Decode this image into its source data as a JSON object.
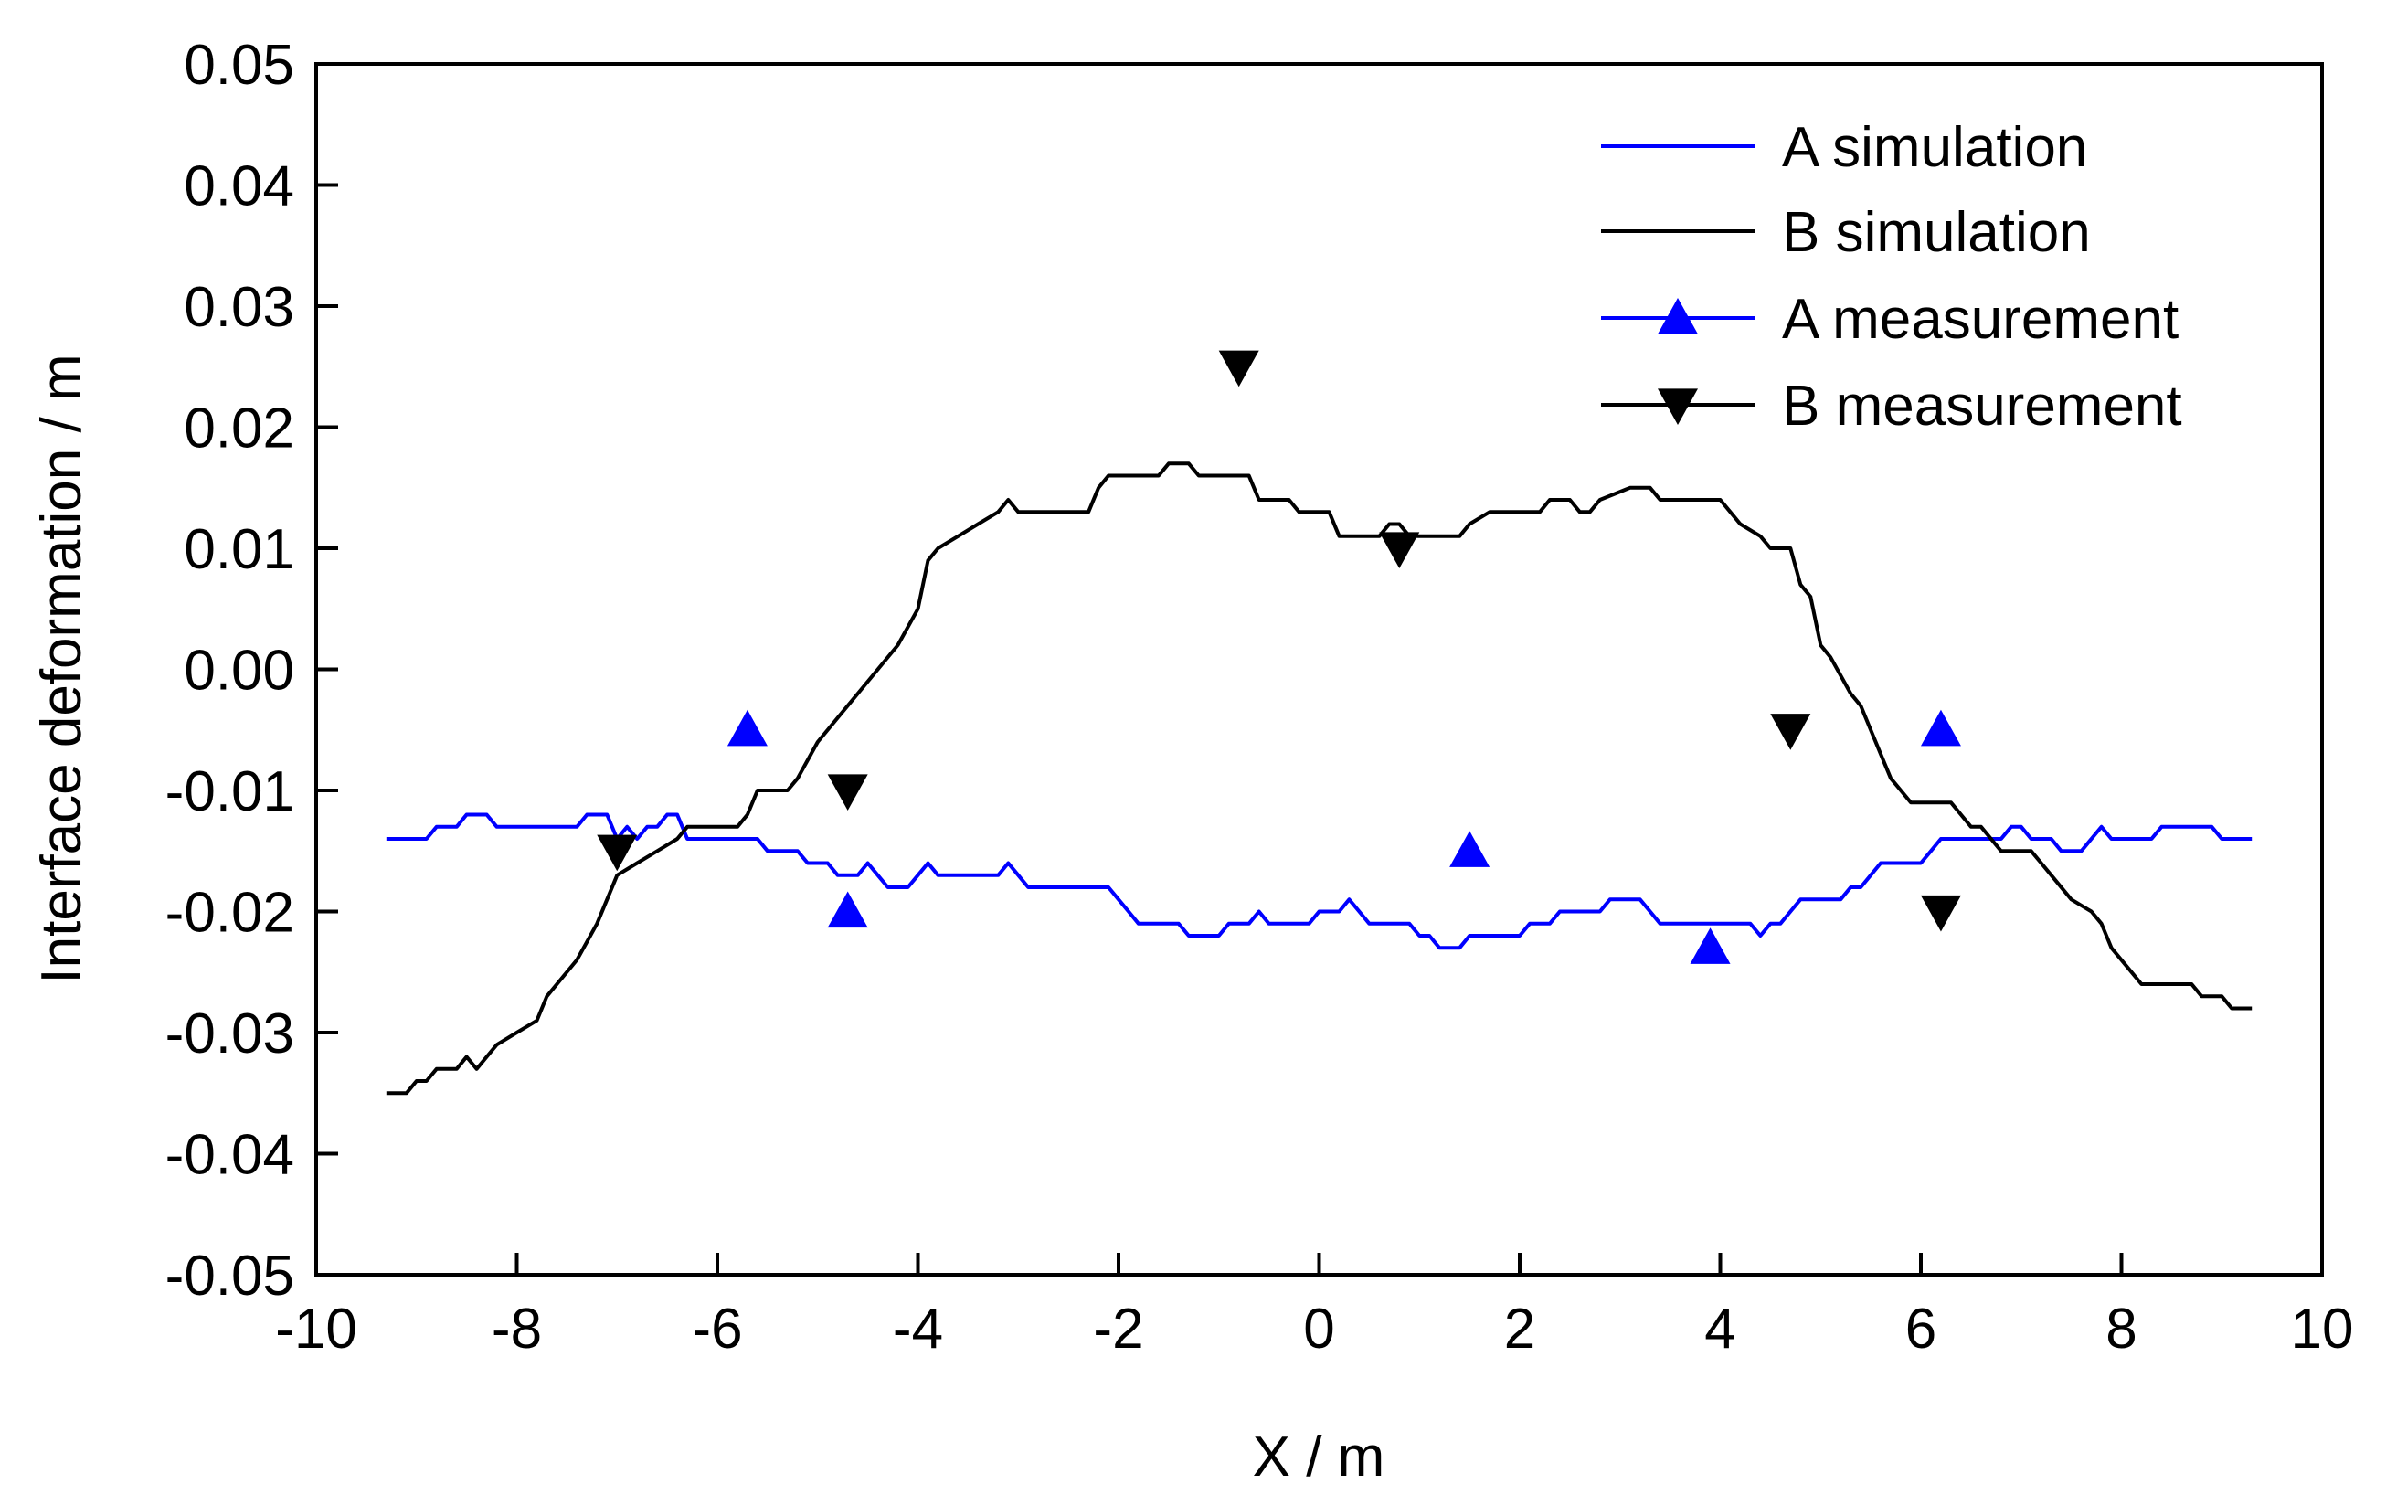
{
  "chart_data": {
    "type": "line",
    "title": "",
    "xlabel": "X / m",
    "ylabel": "Interface deformation / m",
    "xlim": [
      -10,
      10
    ],
    "ylim": [
      -0.05,
      0.05
    ],
    "x_ticks": [
      "-10",
      "-8",
      "-6",
      "-4",
      "-2",
      "0",
      "2",
      "4",
      "6",
      "8",
      "10"
    ],
    "y_ticks": [
      "-0.05",
      "-0.04",
      "-0.03",
      "-0.02",
      "-0.01",
      "0.00",
      "0.01",
      "0.02",
      "0.03",
      "0.04",
      "0.05"
    ],
    "legend_position": "top-right",
    "series": [
      {
        "name": "A simulation",
        "style": "line",
        "color": "#0000ff",
        "points": [
          [
            -9.3,
            -0.014
          ],
          [
            -8.9,
            -0.014
          ],
          [
            -8.8,
            -0.013
          ],
          [
            -8.6,
            -0.013
          ],
          [
            -8.5,
            -0.012
          ],
          [
            -8.3,
            -0.012
          ],
          [
            -8.2,
            -0.013
          ],
          [
            -7.4,
            -0.013
          ],
          [
            -7.3,
            -0.012
          ],
          [
            -7.1,
            -0.012
          ],
          [
            -7.0,
            -0.014
          ],
          [
            -6.9,
            -0.013
          ],
          [
            -6.8,
            -0.014
          ],
          [
            -6.7,
            -0.013
          ],
          [
            -6.6,
            -0.013
          ],
          [
            -6.5,
            -0.012
          ],
          [
            -6.4,
            -0.012
          ],
          [
            -6.3,
            -0.014
          ],
          [
            -5.6,
            -0.014
          ],
          [
            -5.5,
            -0.015
          ],
          [
            -5.2,
            -0.015
          ],
          [
            -5.1,
            -0.016
          ],
          [
            -4.9,
            -0.016
          ],
          [
            -4.8,
            -0.017
          ],
          [
            -4.6,
            -0.017
          ],
          [
            -4.5,
            -0.016
          ],
          [
            -4.4,
            -0.017
          ],
          [
            -4.3,
            -0.018
          ],
          [
            -4.1,
            -0.018
          ],
          [
            -4.0,
            -0.017
          ],
          [
            -3.9,
            -0.016
          ],
          [
            -3.8,
            -0.017
          ],
          [
            -3.2,
            -0.017
          ],
          [
            -3.1,
            -0.016
          ],
          [
            -3.0,
            -0.017
          ],
          [
            -2.9,
            -0.018
          ],
          [
            -2.1,
            -0.018
          ],
          [
            -2.0,
            -0.019
          ],
          [
            -1.9,
            -0.02
          ],
          [
            -1.8,
            -0.021
          ],
          [
            -1.4,
            -0.021
          ],
          [
            -1.3,
            -0.022
          ],
          [
            -1.0,
            -0.022
          ],
          [
            -0.9,
            -0.021
          ],
          [
            -0.7,
            -0.021
          ],
          [
            -0.6,
            -0.02
          ],
          [
            -0.5,
            -0.021
          ],
          [
            -0.1,
            -0.021
          ],
          [
            0.0,
            -0.02
          ],
          [
            0.2,
            -0.02
          ],
          [
            0.3,
            -0.019
          ],
          [
            0.4,
            -0.02
          ],
          [
            0.5,
            -0.021
          ],
          [
            0.9,
            -0.021
          ],
          [
            1.0,
            -0.022
          ],
          [
            1.1,
            -0.022
          ],
          [
            1.2,
            -0.023
          ],
          [
            1.4,
            -0.023
          ],
          [
            1.5,
            -0.022
          ],
          [
            2.0,
            -0.022
          ],
          [
            2.1,
            -0.021
          ],
          [
            2.3,
            -0.021
          ],
          [
            2.4,
            -0.02
          ],
          [
            2.8,
            -0.02
          ],
          [
            2.9,
            -0.019
          ],
          [
            3.2,
            -0.019
          ],
          [
            3.3,
            -0.02
          ],
          [
            3.4,
            -0.021
          ],
          [
            4.3,
            -0.021
          ],
          [
            4.4,
            -0.022
          ],
          [
            4.5,
            -0.021
          ],
          [
            4.6,
            -0.021
          ],
          [
            4.7,
            -0.02
          ],
          [
            4.8,
            -0.019
          ],
          [
            5.2,
            -0.019
          ],
          [
            5.3,
            -0.018
          ],
          [
            5.4,
            -0.018
          ],
          [
            5.5,
            -0.017
          ],
          [
            5.6,
            -0.016
          ],
          [
            6.0,
            -0.016
          ],
          [
            6.1,
            -0.015
          ],
          [
            6.2,
            -0.014
          ],
          [
            6.8,
            -0.014
          ],
          [
            6.9,
            -0.013
          ],
          [
            7.0,
            -0.013
          ],
          [
            7.1,
            -0.014
          ],
          [
            7.3,
            -0.014
          ],
          [
            7.4,
            -0.015
          ],
          [
            7.6,
            -0.015
          ],
          [
            7.7,
            -0.014
          ],
          [
            7.8,
            -0.013
          ],
          [
            7.9,
            -0.014
          ],
          [
            8.3,
            -0.014
          ],
          [
            8.4,
            -0.013
          ],
          [
            8.9,
            -0.013
          ],
          [
            9.0,
            -0.014
          ],
          [
            9.3,
            -0.014
          ]
        ]
      },
      {
        "name": "B simulation",
        "style": "line",
        "color": "#000000",
        "points": [
          [
            -9.3,
            -0.035
          ],
          [
            -9.1,
            -0.035
          ],
          [
            -9.0,
            -0.034
          ],
          [
            -8.9,
            -0.034
          ],
          [
            -8.8,
            -0.033
          ],
          [
            -8.6,
            -0.033
          ],
          [
            -8.5,
            -0.032
          ],
          [
            -8.4,
            -0.033
          ],
          [
            -8.3,
            -0.032
          ],
          [
            -8.2,
            -0.031
          ],
          [
            -8.0,
            -0.03
          ],
          [
            -7.8,
            -0.029
          ],
          [
            -7.7,
            -0.027
          ],
          [
            -7.6,
            -0.026
          ],
          [
            -7.4,
            -0.024
          ],
          [
            -7.2,
            -0.021
          ],
          [
            -7.0,
            -0.017
          ],
          [
            -6.8,
            -0.016
          ],
          [
            -6.6,
            -0.015
          ],
          [
            -6.4,
            -0.014
          ],
          [
            -6.3,
            -0.013
          ],
          [
            -6.2,
            -0.013
          ],
          [
            -5.9,
            -0.013
          ],
          [
            -5.8,
            -0.013
          ],
          [
            -5.7,
            -0.012
          ],
          [
            -5.6,
            -0.01
          ],
          [
            -5.5,
            -0.01
          ],
          [
            -5.3,
            -0.01
          ],
          [
            -5.2,
            -0.009
          ],
          [
            -5.0,
            -0.006
          ],
          [
            -4.8,
            -0.004
          ],
          [
            -4.6,
            -0.002
          ],
          [
            -4.4,
            0.0
          ],
          [
            -4.2,
            0.002
          ],
          [
            -4.0,
            0.005
          ],
          [
            -3.9,
            0.009
          ],
          [
            -3.8,
            0.01
          ],
          [
            -3.6,
            0.011
          ],
          [
            -3.4,
            0.012
          ],
          [
            -3.2,
            0.013
          ],
          [
            -3.1,
            0.014
          ],
          [
            -3.0,
            0.013
          ],
          [
            -2.3,
            0.013
          ],
          [
            -2.2,
            0.015
          ],
          [
            -2.1,
            0.016
          ],
          [
            -1.6,
            0.016
          ],
          [
            -1.5,
            0.017
          ],
          [
            -1.3,
            0.017
          ],
          [
            -1.2,
            0.016
          ],
          [
            -0.7,
            0.016
          ],
          [
            -0.6,
            0.014
          ],
          [
            -0.3,
            0.014
          ],
          [
            -0.2,
            0.013
          ],
          [
            0.1,
            0.013
          ],
          [
            0.2,
            0.011
          ],
          [
            0.3,
            0.011
          ],
          [
            0.6,
            0.011
          ],
          [
            0.7,
            0.012
          ],
          [
            0.8,
            0.012
          ],
          [
            0.9,
            0.011
          ],
          [
            1.4,
            0.011
          ],
          [
            1.5,
            0.012
          ],
          [
            1.7,
            0.013
          ],
          [
            2.2,
            0.013
          ],
          [
            2.3,
            0.014
          ],
          [
            2.5,
            0.014
          ],
          [
            2.6,
            0.013
          ],
          [
            2.7,
            0.013
          ],
          [
            2.8,
            0.014
          ],
          [
            3.1,
            0.015
          ],
          [
            3.3,
            0.015
          ],
          [
            3.4,
            0.014
          ],
          [
            3.9,
            0.014
          ],
          [
            4.0,
            0.014
          ],
          [
            4.1,
            0.013
          ],
          [
            4.2,
            0.012
          ],
          [
            4.4,
            0.011
          ],
          [
            4.5,
            0.01
          ],
          [
            4.7,
            0.01
          ],
          [
            4.8,
            0.007
          ],
          [
            4.9,
            0.006
          ],
          [
            5.0,
            0.002
          ],
          [
            5.1,
            0.001
          ],
          [
            5.3,
            -0.002
          ],
          [
            5.4,
            -0.003
          ],
          [
            5.5,
            -0.005
          ],
          [
            5.6,
            -0.007
          ],
          [
            5.7,
            -0.009
          ],
          [
            5.8,
            -0.01
          ],
          [
            5.9,
            -0.011
          ],
          [
            6.3,
            -0.011
          ],
          [
            6.4,
            -0.012
          ],
          [
            6.5,
            -0.013
          ],
          [
            6.6,
            -0.013
          ],
          [
            6.7,
            -0.014
          ],
          [
            6.8,
            -0.015
          ],
          [
            7.1,
            -0.015
          ],
          [
            7.2,
            -0.016
          ],
          [
            7.3,
            -0.017
          ],
          [
            7.5,
            -0.019
          ],
          [
            7.7,
            -0.02
          ],
          [
            7.8,
            -0.021
          ],
          [
            7.9,
            -0.023
          ],
          [
            8.1,
            -0.025
          ],
          [
            8.2,
            -0.026
          ],
          [
            8.7,
            -0.026
          ],
          [
            8.8,
            -0.027
          ],
          [
            9.0,
            -0.027
          ],
          [
            9.1,
            -0.028
          ],
          [
            9.3,
            -0.028
          ]
        ]
      },
      {
        "name": "A measurement",
        "style": "marker",
        "marker": "triangle-up",
        "color": "#0000ff",
        "points": [
          [
            -5.7,
            -0.005
          ],
          [
            -4.7,
            -0.02
          ],
          [
            1.5,
            -0.015
          ],
          [
            3.9,
            -0.023
          ],
          [
            6.2,
            -0.005
          ]
        ]
      },
      {
        "name": "B measurement",
        "style": "marker",
        "marker": "triangle-down",
        "color": "#000000",
        "points": [
          [
            -7.0,
            -0.015
          ],
          [
            -4.7,
            -0.01
          ],
          [
            -0.8,
            0.025
          ],
          [
            0.8,
            0.01
          ],
          [
            4.7,
            -0.005
          ],
          [
            6.2,
            -0.02
          ]
        ]
      }
    ]
  }
}
